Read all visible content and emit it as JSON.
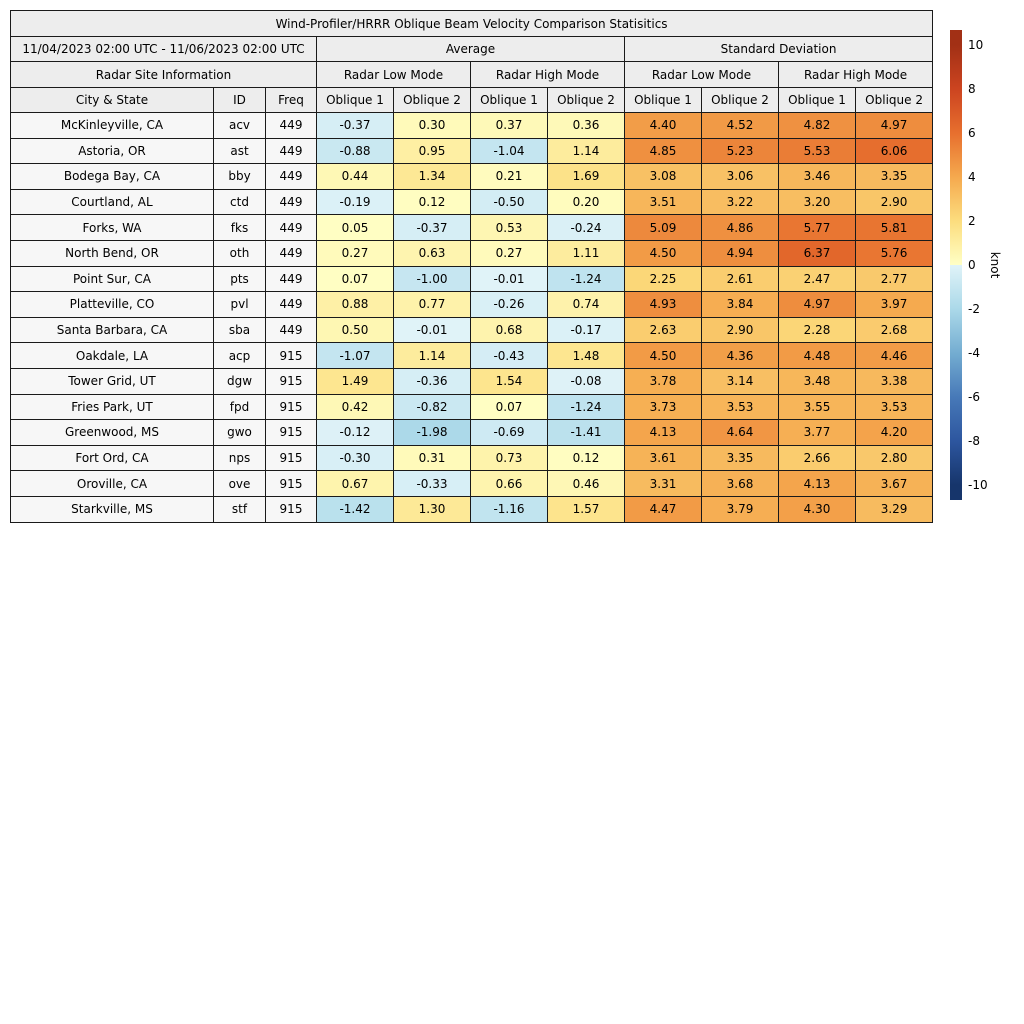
{
  "title": "Wind-Profiler/HRRR Oblique Beam Velocity Comparison Statisitics",
  "header": {
    "date_range": "11/04/2023 02:00 UTC - 11/06/2023 02:00 UTC",
    "groups": [
      "Average",
      "Standard Deviation"
    ],
    "site_info": "Radar Site Information",
    "modes": [
      "Radar Low Mode",
      "Radar High Mode",
      "Radar Low Mode",
      "Radar High Mode"
    ],
    "columns": [
      "City & State",
      "ID",
      "Freq",
      "Oblique 1",
      "Oblique 2",
      "Oblique 1",
      "Oblique 2",
      "Oblique 1",
      "Oblique 2",
      "Oblique 1",
      "Oblique 2"
    ]
  },
  "chart_data": {
    "type": "heatmap",
    "title": "Wind-Profiler/HRRR Oblique Beam Velocity Comparison Statisitics",
    "subtitle": "11/04/2023 02:00 UTC - 11/06/2023 02:00 UTC",
    "value_unit": "knot",
    "color_range": [
      -10,
      10
    ],
    "value_columns": [
      "Average Radar Low Mode Oblique 1",
      "Average Radar Low Mode Oblique 2",
      "Average Radar High Mode Oblique 1",
      "Average Radar High Mode Oblique 2",
      "Standard Deviation Radar Low Mode Oblique 1",
      "Standard Deviation Radar Low Mode Oblique 2",
      "Standard Deviation Radar High Mode Oblique 1",
      "Standard Deviation Radar High Mode Oblique 2"
    ],
    "rows": [
      {
        "city": "McKinleyville, CA",
        "id": "acv",
        "freq": "449",
        "values": [
          -0.37,
          0.3,
          0.37,
          0.36,
          4.4,
          4.52,
          4.82,
          4.97
        ]
      },
      {
        "city": "Astoria, OR",
        "id": "ast",
        "freq": "449",
        "values": [
          -0.88,
          0.95,
          -1.04,
          1.14,
          4.85,
          5.23,
          5.53,
          6.06
        ]
      },
      {
        "city": "Bodega Bay, CA",
        "id": "bby",
        "freq": "449",
        "values": [
          0.44,
          1.34,
          0.21,
          1.69,
          3.08,
          3.06,
          3.46,
          3.35
        ]
      },
      {
        "city": "Courtland, AL",
        "id": "ctd",
        "freq": "449",
        "values": [
          -0.19,
          0.12,
          -0.5,
          0.2,
          3.51,
          3.22,
          3.2,
          2.9
        ]
      },
      {
        "city": "Forks, WA",
        "id": "fks",
        "freq": "449",
        "values": [
          0.05,
          -0.37,
          0.53,
          -0.24,
          5.09,
          4.86,
          5.77,
          5.81
        ]
      },
      {
        "city": "North Bend, OR",
        "id": "oth",
        "freq": "449",
        "values": [
          0.27,
          0.63,
          0.27,
          1.11,
          4.5,
          4.94,
          6.37,
          5.76
        ]
      },
      {
        "city": "Point Sur, CA",
        "id": "pts",
        "freq": "449",
        "values": [
          0.07,
          -1.0,
          -0.01,
          -1.24,
          2.25,
          2.61,
          2.47,
          2.77
        ]
      },
      {
        "city": "Platteville, CO",
        "id": "pvl",
        "freq": "449",
        "values": [
          0.88,
          0.77,
          -0.26,
          0.74,
          4.93,
          3.84,
          4.97,
          3.97
        ]
      },
      {
        "city": "Santa Barbara, CA",
        "id": "sba",
        "freq": "449",
        "values": [
          0.5,
          -0.01,
          0.68,
          -0.17,
          2.63,
          2.9,
          2.28,
          2.68
        ]
      },
      {
        "city": "Oakdale, LA",
        "id": "acp",
        "freq": "915",
        "values": [
          -1.07,
          1.14,
          -0.43,
          1.48,
          4.5,
          4.36,
          4.48,
          4.46
        ]
      },
      {
        "city": "Tower Grid, UT",
        "id": "dgw",
        "freq": "915",
        "values": [
          1.49,
          -0.36,
          1.54,
          -0.08,
          3.78,
          3.14,
          3.48,
          3.38
        ]
      },
      {
        "city": "Fries Park, UT",
        "id": "fpd",
        "freq": "915",
        "values": [
          0.42,
          -0.82,
          0.07,
          -1.24,
          3.73,
          3.53,
          3.55,
          3.53
        ]
      },
      {
        "city": "Greenwood, MS",
        "id": "gwo",
        "freq": "915",
        "values": [
          -0.12,
          -1.98,
          -0.69,
          -1.41,
          4.13,
          4.64,
          3.77,
          4.2
        ]
      },
      {
        "city": "Fort Ord, CA",
        "id": "nps",
        "freq": "915",
        "values": [
          -0.3,
          0.31,
          0.73,
          0.12,
          3.61,
          3.35,
          2.66,
          2.8
        ]
      },
      {
        "city": "Oroville, CA",
        "id": "ove",
        "freq": "915",
        "values": [
          0.67,
          -0.33,
          0.66,
          0.46,
          3.31,
          3.68,
          4.13,
          3.67
        ]
      },
      {
        "city": "Starkville, MS",
        "id": "stf",
        "freq": "915",
        "values": [
          -1.42,
          1.3,
          -1.16,
          1.57,
          4.47,
          3.79,
          4.3,
          3.29
        ]
      }
    ]
  },
  "colorbar": {
    "unit": "knot",
    "ticks": [
      10,
      8,
      6,
      4,
      2,
      0,
      -2,
      -4,
      -6,
      -8,
      -10
    ],
    "scale": {
      "negative": [
        [
          -10,
          "#16356b"
        ],
        [
          -8,
          "#2d569f"
        ],
        [
          -6,
          "#4779b8"
        ],
        [
          -4,
          "#74add1"
        ],
        [
          -2,
          "#abd9e9"
        ],
        [
          0,
          "#e0f3f8"
        ]
      ],
      "positive": [
        [
          0,
          "#ffffc5"
        ],
        [
          2,
          "#fcdd7e"
        ],
        [
          4,
          "#f5a94e"
        ],
        [
          6,
          "#e76f2e"
        ],
        [
          8,
          "#cc4420"
        ],
        [
          10,
          "#a23015"
        ]
      ]
    }
  },
  "style_colors": {
    "header_bg": "#ededed",
    "label_bg": "#f7f7f7",
    "border": "#1a1a1a"
  }
}
